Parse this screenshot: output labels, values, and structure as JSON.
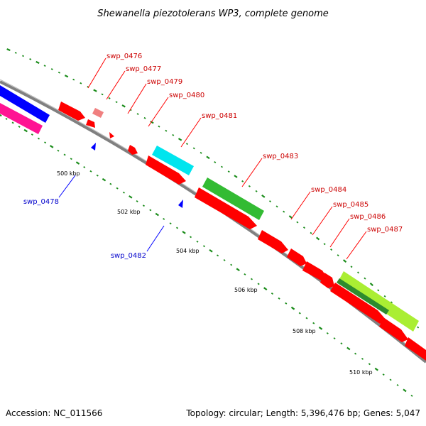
{
  "title": "Shewanella piezotolerans WP3, complete genome",
  "footer": {
    "accession": "Accession: NC_011566",
    "summary": "Topology: circular; Length: 5,396,476 bp; Genes: 5,047"
  },
  "colors": {
    "backbone": "#808080",
    "forward_gene": "#ff0000",
    "reverse_gene": "#0000ff",
    "label_forward": "#cc0000",
    "label_reverse": "#0000cc",
    "gc_dots": "#1a8c1a",
    "pseudo_gene": "#f08080",
    "cyan_feature": "#00e5ee",
    "green_feature": "#33bb33",
    "lime_feature": "#aaee33",
    "blue_feature": "#0000ff",
    "magenta_feature": "#ff1493"
  },
  "tick_labels": [
    "500 kbp",
    "502 kbp",
    "504 kbp",
    "506 kbp",
    "508 kbp",
    "510 kbp"
  ],
  "gene_labels_forward": [
    "swp_0476",
    "swp_0477",
    "swp_0479",
    "swp_0480",
    "swp_0481",
    "swp_0483",
    "swp_0484",
    "swp_0485",
    "swp_0486",
    "swp_0487"
  ],
  "gene_labels_reverse": [
    "swp_0478",
    "swp_0482"
  ]
}
